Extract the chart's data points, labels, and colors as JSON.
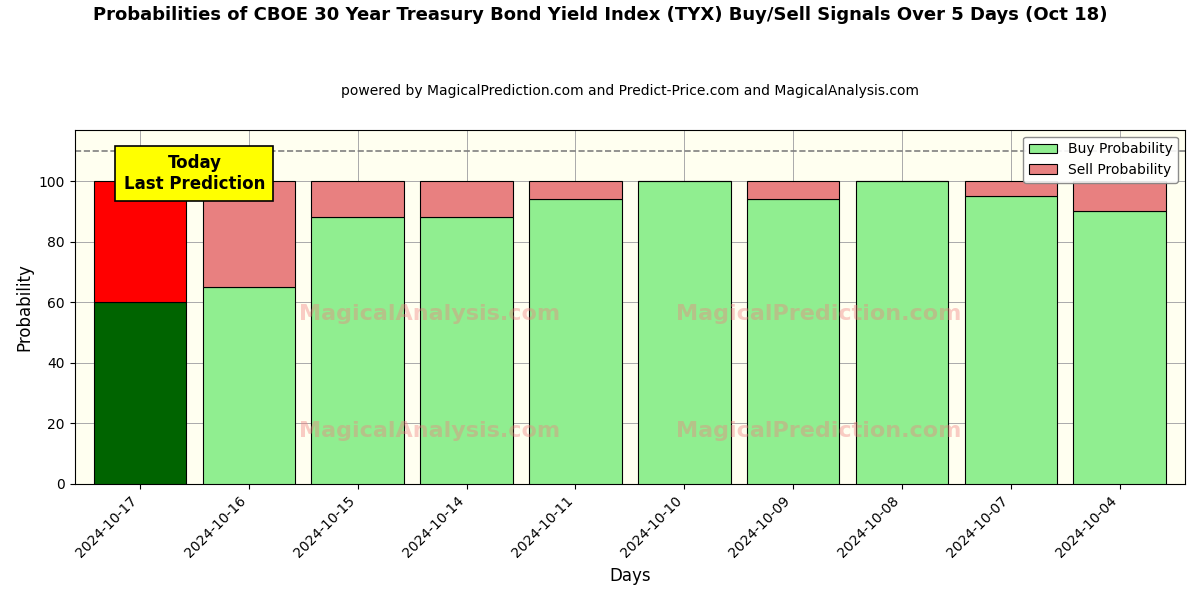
{
  "title": "Probabilities of CBOE 30 Year Treasury Bond Yield Index (TYX) Buy/Sell Signals Over 5 Days (Oct 18)",
  "subtitle": "powered by MagicalPrediction.com and Predict-Price.com and MagicalAnalysis.com",
  "xlabel": "Days",
  "ylabel": "Probability",
  "categories": [
    "2024-10-17",
    "2024-10-16",
    "2024-10-15",
    "2024-10-14",
    "2024-10-11",
    "2024-10-10",
    "2024-10-09",
    "2024-10-08",
    "2024-10-07",
    "2024-10-04"
  ],
  "buy_values": [
    60,
    65,
    88,
    88,
    94,
    100,
    94,
    100,
    95,
    90
  ],
  "sell_values": [
    40,
    35,
    12,
    12,
    6,
    0,
    6,
    0,
    5,
    10
  ],
  "today_bar_buy_color": "#006400",
  "today_bar_sell_color": "#FF0000",
  "normal_buy_color": "#90EE90",
  "normal_sell_color": "#E88080",
  "today_annotation": "Today\nLast Prediction",
  "today_annotation_bg": "#FFFF00",
  "dashed_line_y": 110,
  "ylim": [
    0,
    117
  ],
  "yticks": [
    0,
    20,
    40,
    60,
    80,
    100
  ],
  "legend_buy_label": "Buy Probability",
  "legend_sell_label": "Sell Probability",
  "background_color": "#FFFFF0",
  "grid_color": "#aaaaaa",
  "watermark1": "MagicalAnalysis.com",
  "watermark2": "MagicalPrediction.com",
  "title_fontsize": 13,
  "subtitle_fontsize": 10,
  "bar_width": 0.85
}
